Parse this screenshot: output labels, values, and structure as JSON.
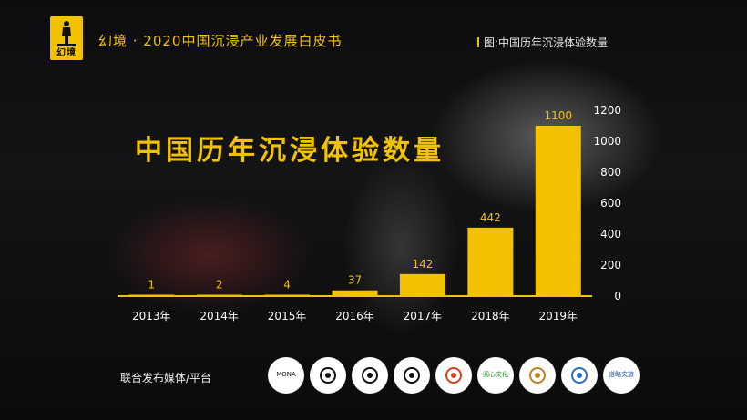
{
  "brand": {
    "logo_text": "幻境"
  },
  "header": {
    "title": "幻境 · 2020中国沉浸产业发展白皮书",
    "caption": "图:中国历年沉浸体验数量"
  },
  "chart_data": {
    "type": "bar",
    "title": "中国历年沉浸体验数量",
    "categories": [
      "2013年",
      "2014年",
      "2015年",
      "2016年",
      "2017年",
      "2018年",
      "2019年"
    ],
    "values": [
      1,
      2,
      4,
      37,
      142,
      442,
      1100
    ],
    "data_labels": [
      "1",
      "2",
      "4",
      "37",
      "142",
      "442",
      "1100"
    ],
    "yticks": [
      "0",
      "200",
      "400",
      "600",
      "800",
      "1000",
      "1200"
    ],
    "ylim": [
      0,
      1200
    ],
    "y_axis_side": "right",
    "grid": false,
    "colors": {
      "bar": "#f2c200",
      "axis_text": "#ffffff",
      "label": "#f2c200"
    }
  },
  "partners": {
    "label": "联合发布媒体/平台",
    "logos": [
      {
        "icon": "mona-logo",
        "text": "MONA",
        "bg": "#ffffff",
        "fg": "#111111"
      },
      {
        "icon": "museum-logo",
        "text": "",
        "bg": "#ffffff",
        "fg": "#111111"
      },
      {
        "icon": "helmet-logo",
        "text": "",
        "bg": "#ffffff",
        "fg": "#111111"
      },
      {
        "icon": "owl-logo",
        "text": "",
        "bg": "#ffffff",
        "fg": "#111111"
      },
      {
        "icon": "camera-logo",
        "text": "",
        "bg": "#ffffff",
        "fg": "#e0401c"
      },
      {
        "icon": "leaf-logo",
        "text": "阅心文化",
        "bg": "#ffffff",
        "fg": "#2a8a2a"
      },
      {
        "icon": "figure-logo",
        "text": "",
        "bg": "#ffffff",
        "fg": "#c08020"
      },
      {
        "icon": "blue-circle-logo",
        "text": "",
        "bg": "#ffffff",
        "fg": "#2a6ad0"
      },
      {
        "icon": "daolue-logo",
        "text": "道略文旅",
        "bg": "#ffffff",
        "fg": "#1f4fa0"
      }
    ]
  }
}
